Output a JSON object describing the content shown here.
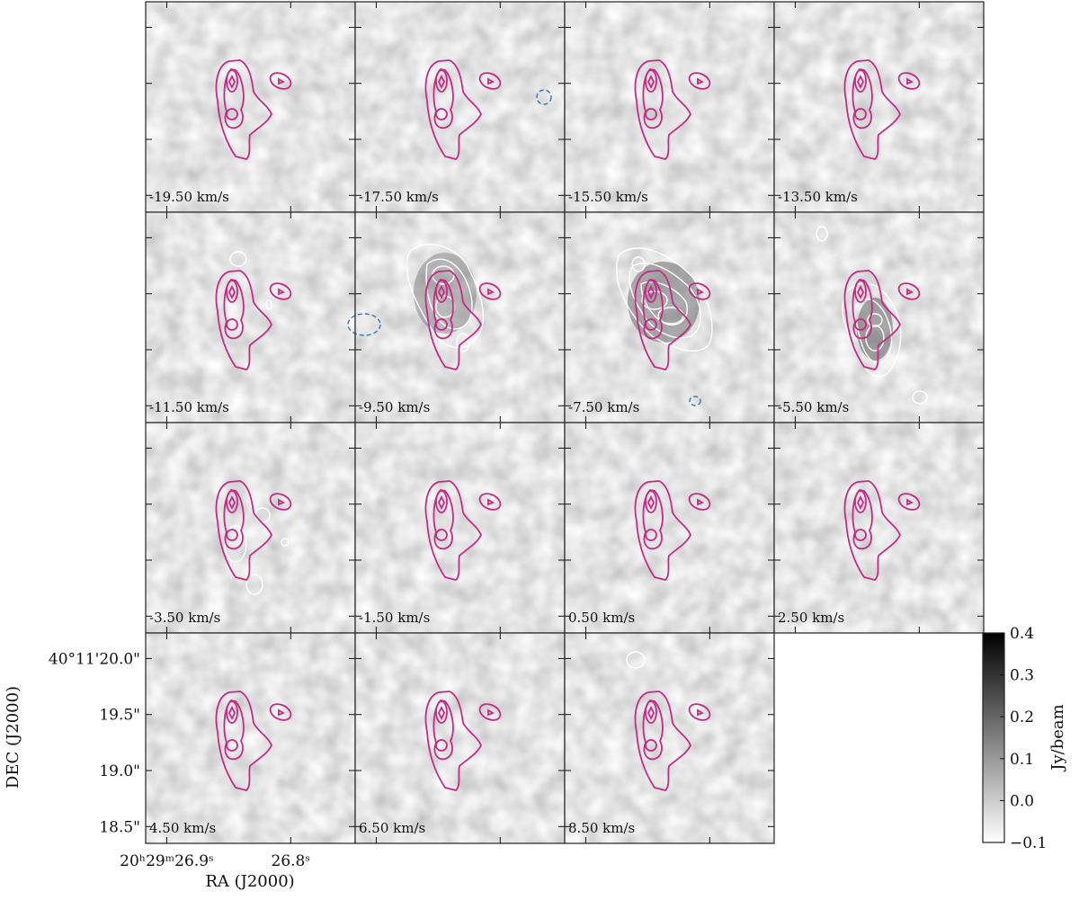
{
  "chart_data": {
    "type": "channel-map",
    "panel_labels": [
      "-19.50 km/s",
      "-17.50 km/s",
      "-15.50 km/s",
      "-13.50 km/s",
      "-11.50 km/s",
      "-9.50 km/s",
      "-7.50 km/s",
      "-5.50 km/s",
      "-3.50 km/s",
      "-1.50 km/s",
      "0.50 km/s",
      "2.50 km/s",
      "4.50 km/s",
      "6.50 km/s",
      "8.50 km/s"
    ],
    "xlabel": "RA (J2000)",
    "ylabel": "DEC (J2000)",
    "xlim": [
      26.917,
      26.748
    ],
    "xticks": [
      {
        "value": 26.9,
        "label": "20ʰ29ᵐ26.9ˢ"
      },
      {
        "value": 26.8,
        "label": "26.8ˢ"
      }
    ],
    "ylim": [
      18.35,
      20.22
    ],
    "yticks": [
      {
        "value": 20.0,
        "label": "40°11'20.0\""
      },
      {
        "value": 19.5,
        "label": "19.5\""
      },
      {
        "value": 19.0,
        "label": "19.0\""
      },
      {
        "value": 18.5,
        "label": "18.5\""
      }
    ],
    "colorbar": {
      "label": "Jy/beam",
      "lim": [
        -0.1,
        0.4
      ],
      "ticks": [
        {
          "value": -0.1,
          "label": "−0.1"
        },
        {
          "value": 0,
          "label": "0.0"
        },
        0.1,
        0.2,
        0.3,
        0.4
      ],
      "colors": [
        "#ffffff",
        "#000000"
      ]
    },
    "contour_color": "#c42a86"
  }
}
